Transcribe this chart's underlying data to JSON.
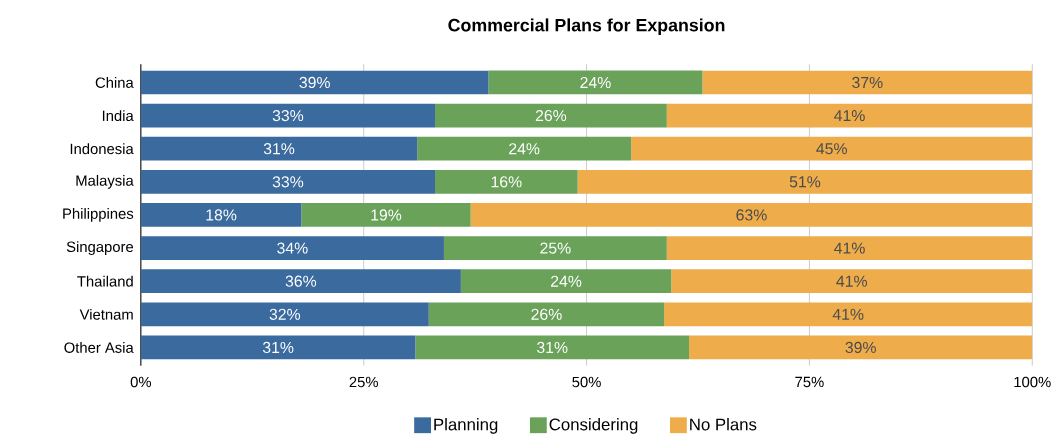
{
  "chart_data": {
    "type": "bar",
    "orientation": "horizontal",
    "stacked": true,
    "title": "Commercial Plans for Expansion",
    "categories": [
      "China",
      "India",
      "Indonesia",
      "Malaysia",
      "Philippines",
      "Singapore",
      "Thailand",
      "Vietnam",
      "Other Asia"
    ],
    "series": [
      {
        "name": "Planning",
        "color": "#3a6a9e",
        "values": [
          39,
          33,
          31,
          33,
          18,
          34,
          35.9,
          32.3,
          30.8
        ],
        "value_labels": [
          "39%",
          "33%",
          "31%",
          "33%",
          "18%",
          "34%",
          "36%",
          "32%",
          "31%"
        ]
      },
      {
        "name": "Considering",
        "color": "#6aa25a",
        "values": [
          24,
          26,
          24,
          16,
          19,
          25,
          23.6,
          26.4,
          30.7
        ],
        "value_labels": [
          "24%",
          "26%",
          "24%",
          "16%",
          "19%",
          "25%",
          "24%",
          "26%",
          "31%"
        ]
      },
      {
        "name": "No Plans",
        "color": "#eeac4b",
        "values": [
          37,
          41,
          45,
          51,
          63,
          41,
          40.5,
          41.3,
          38.5
        ],
        "value_labels": [
          "37%",
          "41%",
          "45%",
          "51%",
          "63%",
          "41%",
          "41%",
          "41%",
          "39%"
        ]
      }
    ],
    "xlim": [
      0,
      100
    ],
    "xticks": [
      {
        "value": 0,
        "label": "0%"
      },
      {
        "value": 25,
        "label": "25%"
      },
      {
        "value": 50,
        "label": "50%"
      },
      {
        "value": 75,
        "label": "75%"
      },
      {
        "value": 100,
        "label": "100%"
      }
    ],
    "grid": "x",
    "legend": "bottom"
  }
}
